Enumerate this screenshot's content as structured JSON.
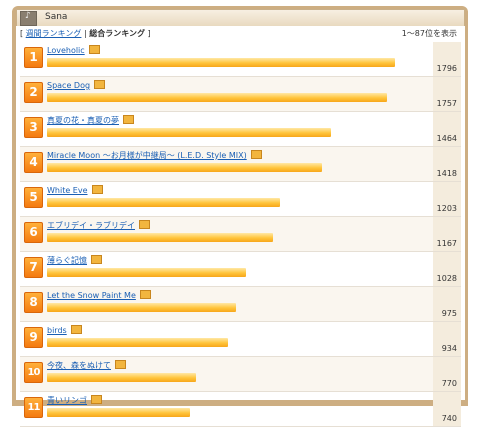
{
  "header": {
    "icon": "music-icon",
    "title": "Sana"
  },
  "nav": {
    "open_bracket": "[",
    "weekly_label": "週間ランキング",
    "separator": "|",
    "total_label": "総合ランキング",
    "close_bracket": "]",
    "range_label": "1〜87位を表示"
  },
  "colors": {
    "frame": "#cdae82",
    "bar": "#ffc43a",
    "link": "#1a5fb4",
    "badge": "#f47a10"
  },
  "ranking": {
    "max_count": 1796,
    "items": [
      {
        "rank": "1",
        "title": "Loveholic",
        "count": 1796
      },
      {
        "rank": "2",
        "title": "Space Dog",
        "count": 1757
      },
      {
        "rank": "3",
        "title": "真夏の花・真夏の夢",
        "count": 1464
      },
      {
        "rank": "4",
        "title": "Miracle Moon 〜お月様が中継局〜 (L.E.D. Style MIX)",
        "count": 1418
      },
      {
        "rank": "5",
        "title": "White Eve",
        "count": 1203
      },
      {
        "rank": "6",
        "title": "エブリデイ・ラブリデイ",
        "count": 1167
      },
      {
        "rank": "7",
        "title": "薄らぐ記憶",
        "count": 1028
      },
      {
        "rank": "8",
        "title": "Let the Snow Paint Me",
        "count": 975
      },
      {
        "rank": "9",
        "title": "birds",
        "count": 934
      },
      {
        "rank": "10",
        "title": "今夜、森をぬけて",
        "count": 770
      },
      {
        "rank": "11",
        "title": "青いリンゴ",
        "count": 740
      }
    ]
  }
}
